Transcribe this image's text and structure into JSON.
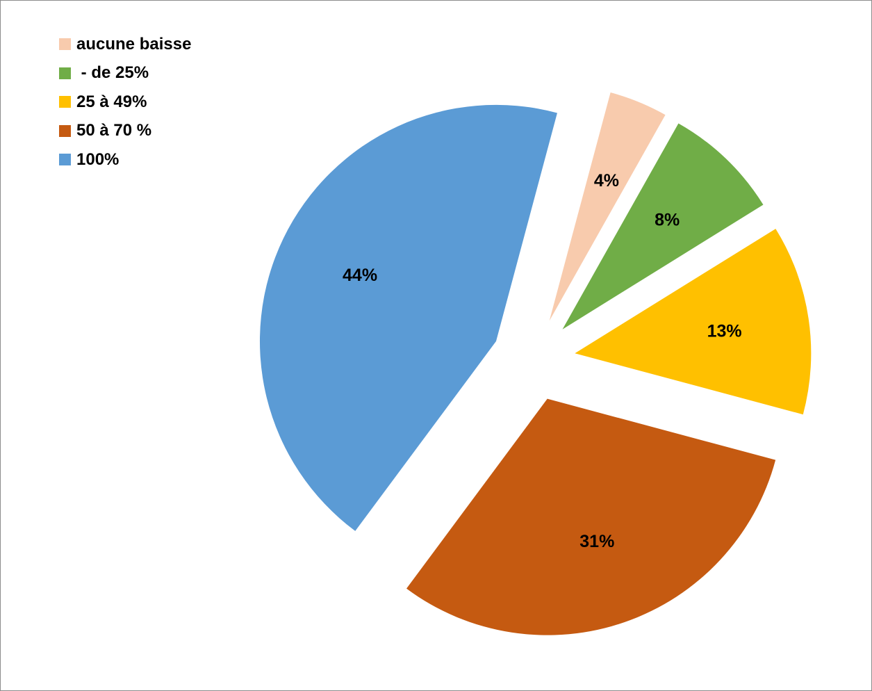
{
  "chart_data": {
    "type": "pie",
    "title": "",
    "exploded": true,
    "legend_position": "top-left",
    "label_format": "percent",
    "categories": [
      "aucune baisse",
      " - de 25%",
      "25 à 49%",
      "50 à 70 %",
      "100%"
    ],
    "values": [
      4,
      8,
      13,
      31,
      44
    ],
    "labels": [
      "4%",
      "8%",
      "13%",
      "31%",
      "44%"
    ],
    "colors": [
      "#F8CBAD",
      "#70AD47",
      "#FFC000",
      "#C55A11",
      "#5B9BD5"
    ],
    "start_angle_deg": 15,
    "direction": "clockwise"
  }
}
